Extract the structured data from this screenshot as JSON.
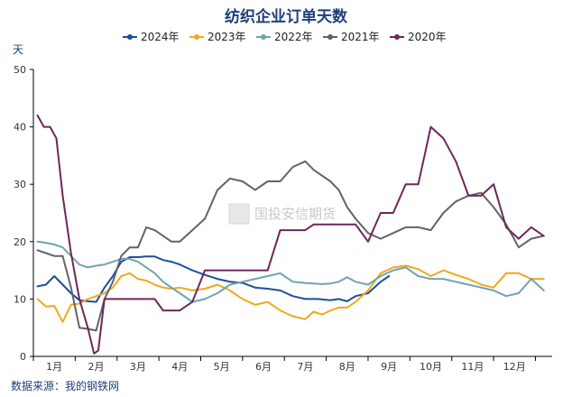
{
  "chart_data": {
    "type": "line",
    "title": "纺织企业订单天数",
    "ylabel": "天",
    "ylim": [
      0,
      50
    ],
    "yticks": [
      "0",
      "10",
      "20",
      "30",
      "40",
      "50"
    ],
    "months": [
      "1月",
      "2月",
      "3月",
      "4月",
      "5月",
      "6月",
      "7月",
      "8月",
      "9月",
      "10月",
      "11月",
      "12月"
    ],
    "x_range": [
      0.5,
      12.9
    ],
    "grid": false,
    "legend_position": "top",
    "source": "数据来源：我的钢铁网",
    "watermark": "国投安信期货",
    "series": [
      {
        "name": "2024年",
        "color": "#1f4e9c",
        "x": [
          0.6,
          0.8,
          1.0,
          1.2,
          1.4,
          1.6,
          1.8,
          2.0,
          2.2,
          2.4,
          2.6,
          2.8,
          3.0,
          3.2,
          3.4,
          3.6,
          3.8,
          4.0,
          4.3,
          4.6,
          4.9,
          5.2,
          5.5,
          5.8,
          6.1,
          6.4,
          6.7,
          7.0,
          7.3,
          7.6,
          7.8,
          8.0,
          8.2,
          8.5,
          8.8,
          9.0
        ],
        "y": [
          12.2,
          12.5,
          14.0,
          12.5,
          11.0,
          9.8,
          9.6,
          9.5,
          12.0,
          14.0,
          16.5,
          17.3,
          17.3,
          17.4,
          17.4,
          16.8,
          16.5,
          16.0,
          15.0,
          14.2,
          13.5,
          13.0,
          12.8,
          12.0,
          11.8,
          11.5,
          10.5,
          10.0,
          10.0,
          9.8,
          10.0,
          9.6,
          10.5,
          11.0,
          13.0,
          14.0
        ]
      },
      {
        "name": "2023年",
        "color": "#f0a81c",
        "x": [
          0.6,
          0.8,
          1.0,
          1.2,
          1.4,
          1.6,
          1.8,
          2.0,
          2.2,
          2.4,
          2.6,
          2.8,
          3.0,
          3.2,
          3.4,
          3.6,
          3.8,
          4.0,
          4.3,
          4.6,
          4.9,
          5.2,
          5.5,
          5.8,
          6.1,
          6.4,
          6.7,
          7.0,
          7.2,
          7.4,
          7.6,
          7.8,
          8.0,
          8.2,
          8.5,
          8.8,
          9.1,
          9.4,
          9.7,
          10.0,
          10.3,
          10.6,
          10.9,
          11.2,
          11.5,
          11.8,
          12.1,
          12.4,
          12.7
        ],
        "y": [
          10.0,
          8.7,
          8.8,
          6.0,
          9.0,
          9.2,
          10.0,
          10.5,
          11.0,
          12.0,
          14.0,
          14.5,
          13.5,
          13.2,
          12.5,
          12.0,
          11.8,
          12.0,
          11.5,
          11.8,
          12.5,
          11.5,
          10.0,
          9.0,
          9.5,
          8.0,
          7.0,
          6.5,
          7.8,
          7.3,
          8.0,
          8.5,
          8.5,
          9.5,
          11.5,
          14.5,
          15.5,
          15.8,
          15.2,
          14.0,
          15.0,
          14.2,
          13.5,
          12.5,
          12.0,
          14.5,
          14.5,
          13.5,
          13.5
        ]
      },
      {
        "name": "2022年",
        "color": "#6fa3b0",
        "x": [
          0.6,
          0.8,
          1.0,
          1.2,
          1.4,
          1.6,
          1.8,
          2.0,
          2.2,
          2.4,
          2.6,
          2.8,
          3.0,
          3.2,
          3.4,
          3.6,
          3.8,
          4.0,
          4.3,
          4.6,
          4.9,
          5.2,
          5.5,
          5.8,
          6.1,
          6.4,
          6.7,
          7.0,
          7.2,
          7.4,
          7.6,
          7.8,
          8.0,
          8.2,
          8.5,
          8.8,
          9.1,
          9.4,
          9.7,
          10.0,
          10.3,
          10.6,
          10.9,
          11.2,
          11.5,
          11.8,
          12.1,
          12.4,
          12.7
        ],
        "y": [
          20.0,
          19.8,
          19.5,
          19.0,
          17.5,
          16.0,
          15.5,
          15.8,
          16.0,
          16.5,
          17.0,
          17.0,
          16.5,
          15.5,
          14.5,
          13.0,
          12.0,
          11.0,
          9.5,
          10.0,
          11.0,
          12.5,
          13.0,
          13.5,
          14.0,
          14.5,
          13.0,
          12.8,
          12.7,
          12.6,
          12.7,
          13.0,
          13.8,
          13.0,
          12.5,
          14.0,
          15.0,
          15.5,
          14.0,
          13.5,
          13.5,
          13.0,
          12.5,
          12.0,
          11.5,
          10.5,
          11.0,
          13.5,
          11.5
        ]
      },
      {
        "name": "2021年",
        "color": "#5f6468",
        "x": [
          0.6,
          0.8,
          1.0,
          1.2,
          1.4,
          1.6,
          1.8,
          2.0,
          2.2,
          2.4,
          2.6,
          2.8,
          3.0,
          3.2,
          3.4,
          3.6,
          3.8,
          4.0,
          4.3,
          4.6,
          4.9,
          5.2,
          5.5,
          5.8,
          6.1,
          6.4,
          6.7,
          7.0,
          7.2,
          7.4,
          7.6,
          7.8,
          8.0,
          8.2,
          8.5,
          8.8,
          9.1,
          9.4,
          9.7,
          10.0,
          10.3,
          10.6,
          10.9,
          11.2,
          11.5,
          11.8,
          12.1,
          12.4,
          12.7
        ],
        "y": [
          18.5,
          18.0,
          17.5,
          17.5,
          12.0,
          5.0,
          4.8,
          4.5,
          10.0,
          13.0,
          17.5,
          19.0,
          19.0,
          22.5,
          22.0,
          21.0,
          20.0,
          20.0,
          22.0,
          24.0,
          29.0,
          31.0,
          30.5,
          29.0,
          30.5,
          30.5,
          33.0,
          34.0,
          32.5,
          31.5,
          30.5,
          29.0,
          26.0,
          24.0,
          21.5,
          20.5,
          21.5,
          22.5,
          22.5,
          22.0,
          25.0,
          27.0,
          28.0,
          28.5,
          26.0,
          23.0,
          19.0,
          20.5,
          21.0
        ]
      },
      {
        "name": "2020年",
        "color": "#6e2756",
        "x": [
          0.6,
          0.75,
          0.9,
          1.05,
          1.2,
          1.4,
          1.6,
          1.8,
          1.95,
          2.05,
          2.2,
          2.4,
          2.6,
          2.8,
          3.0,
          3.2,
          3.4,
          3.6,
          3.8,
          4.0,
          4.3,
          4.6,
          4.9,
          5.2,
          5.5,
          5.8,
          6.1,
          6.4,
          6.7,
          7.0,
          7.2,
          7.4,
          7.6,
          7.8,
          8.0,
          8.2,
          8.5,
          8.8,
          9.1,
          9.4,
          9.7,
          10.0,
          10.3,
          10.6,
          10.9,
          11.2,
          11.5,
          11.8,
          12.1,
          12.4,
          12.7
        ],
        "y": [
          42.0,
          40.0,
          40.0,
          38.0,
          28.0,
          18.0,
          10.0,
          5.0,
          0.5,
          1.0,
          10.0,
          10.0,
          10.0,
          10.0,
          10.0,
          10.0,
          10.0,
          8.0,
          8.0,
          8.0,
          9.5,
          15.0,
          15.0,
          15.0,
          15.0,
          15.0,
          15.0,
          22.0,
          22.0,
          22.0,
          23.0,
          23.0,
          23.0,
          23.0,
          23.0,
          23.0,
          20.0,
          25.0,
          25.0,
          30.0,
          30.0,
          40.0,
          38.0,
          34.0,
          28.0,
          28.0,
          30.0,
          22.5,
          20.5,
          22.5,
          21.0
        ]
      }
    ]
  }
}
